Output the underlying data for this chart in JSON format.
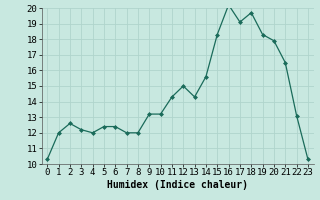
{
  "x": [
    0,
    1,
    2,
    3,
    4,
    5,
    6,
    7,
    8,
    9,
    10,
    11,
    12,
    13,
    14,
    15,
    16,
    17,
    18,
    19,
    20,
    21,
    22,
    23
  ],
  "y": [
    10.3,
    12.0,
    12.6,
    12.2,
    12.0,
    12.4,
    12.4,
    12.0,
    12.0,
    13.2,
    13.2,
    14.3,
    15.0,
    14.3,
    15.6,
    18.3,
    20.2,
    19.1,
    19.7,
    18.3,
    17.9,
    16.5,
    13.1,
    10.3
  ],
  "xlabel": "Humidex (Indice chaleur)",
  "ylim": [
    10,
    20
  ],
  "xlim_min": -0.5,
  "xlim_max": 23.5,
  "yticks": [
    10,
    11,
    12,
    13,
    14,
    15,
    16,
    17,
    18,
    19,
    20
  ],
  "xticks": [
    0,
    1,
    2,
    3,
    4,
    5,
    6,
    7,
    8,
    9,
    10,
    11,
    12,
    13,
    14,
    15,
    16,
    17,
    18,
    19,
    20,
    21,
    22,
    23
  ],
  "line_color": "#1a6b5a",
  "marker_color": "#1a6b5a",
  "bg_color": "#c8e8e0",
  "grid_color": "#b0d4cc",
  "xlabel_fontsize": 7,
  "tick_fontsize": 6.5
}
